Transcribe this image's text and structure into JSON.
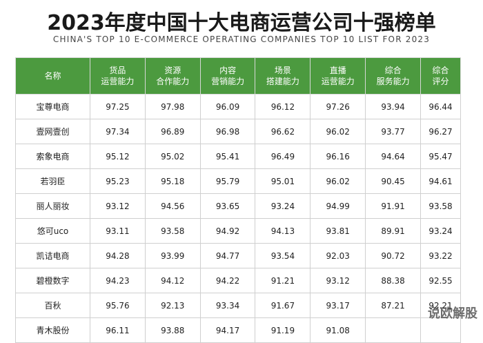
{
  "header": {
    "title": "2023年度中国十大电商运营公司十强榜单",
    "subtitle": "CHINA'S TOP 10 E-COMMERCE OPERATING COMPANIES TOP 10 LIST FOR 2023"
  },
  "table": {
    "columns": [
      [
        "名称"
      ],
      [
        "货品",
        "运营能力"
      ],
      [
        "资源",
        "合作能力"
      ],
      [
        "内容",
        "营销能力"
      ],
      [
        "场景",
        "搭建能力"
      ],
      [
        "直播",
        "运营能力"
      ],
      [
        "综合",
        "服务能力"
      ],
      [
        "综合",
        "评分"
      ]
    ],
    "rows": [
      [
        "宝尊电商",
        "97.25",
        "97.98",
        "96.09",
        "96.12",
        "97.26",
        "93.94",
        "96.44"
      ],
      [
        "壹网壹创",
        "97.34",
        "96.89",
        "96.98",
        "96.62",
        "96.02",
        "93.77",
        "96.27"
      ],
      [
        "索象电商",
        "95.12",
        "95.02",
        "95.41",
        "96.49",
        "96.16",
        "94.64",
        "95.47"
      ],
      [
        "若羽臣",
        "95.23",
        "95.18",
        "95.79",
        "95.01",
        "96.02",
        "90.45",
        "94.61"
      ],
      [
        "丽人丽妆",
        "93.12",
        "94.56",
        "93.65",
        "93.24",
        "94.99",
        "91.91",
        "93.58"
      ],
      [
        "悠可uco",
        "93.11",
        "93.58",
        "94.92",
        "94.13",
        "93.81",
        "89.91",
        "93.24"
      ],
      [
        "凯诘电商",
        "94.28",
        "93.99",
        "94.77",
        "93.54",
        "92.03",
        "90.72",
        "93.22"
      ],
      [
        "碧橙数字",
        "94.23",
        "94.12",
        "94.22",
        "91.21",
        "93.12",
        "88.38",
        "92.55"
      ],
      [
        "百秋",
        "95.76",
        "92.13",
        "93.34",
        "91.67",
        "93.17",
        "87.21",
        "92.21"
      ],
      [
        "青木股份",
        "96.11",
        "93.88",
        "94.17",
        "91.19",
        "91.08",
        null,
        null
      ]
    ]
  },
  "watermark": "说欧解股"
}
